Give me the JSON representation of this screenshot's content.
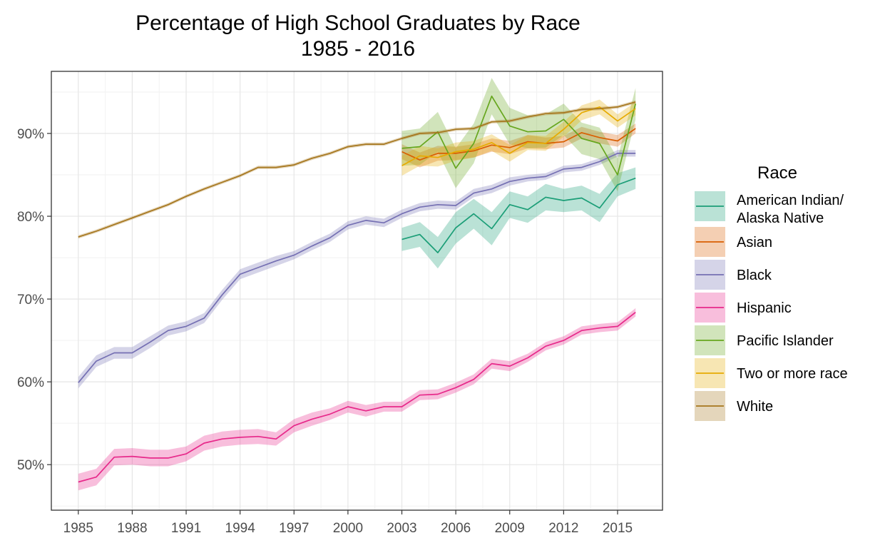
{
  "chart_data": {
    "type": "line",
    "title": "Percentage of High School Graduates by Race",
    "subtitle": "1985 - 2016",
    "xlabel": "",
    "ylabel": "",
    "x_ticks": [
      1985,
      1988,
      1991,
      1994,
      1997,
      2000,
      2003,
      2006,
      2009,
      2012,
      2015
    ],
    "y_ticks": [
      50,
      60,
      70,
      80,
      90
    ],
    "y_tick_labels": [
      "50%",
      "60%",
      "70%",
      "80%",
      "90%"
    ],
    "xlim": [
      1983.5,
      2017.5
    ],
    "ylim": [
      44.5,
      97.5
    ],
    "grid": true,
    "legend": {
      "title": "Race",
      "position": "right"
    },
    "series": [
      {
        "name": "American Indian/ Alaska Native",
        "label_lines": [
          "American Indian/",
          "Alaska Native"
        ],
        "color": "#1b9e77",
        "fill": "#b3e2d4",
        "x": [
          2003,
          2004,
          2005,
          2006,
          2007,
          2008,
          2009,
          2010,
          2011,
          2012,
          2013,
          2014,
          2015,
          2016
        ],
        "y": [
          77.2,
          77.8,
          75.6,
          78.6,
          80.3,
          78.5,
          81.4,
          80.8,
          82.3,
          81.9,
          82.2,
          81.0,
          83.8,
          84.6
        ],
        "band": [
          1.4,
          1.5,
          1.9,
          1.9,
          1.8,
          2.0,
          1.6,
          1.6,
          1.6,
          1.4,
          1.5,
          1.7,
          1.4,
          1.3
        ]
      },
      {
        "name": "Asian",
        "label_lines": [
          "Asian"
        ],
        "color": "#d95f02",
        "fill": "#f3cdb0",
        "x": [
          2003,
          2004,
          2005,
          2006,
          2007,
          2008,
          2009,
          2010,
          2011,
          2012,
          2013,
          2014,
          2015,
          2016
        ],
        "y": [
          87.8,
          86.8,
          87.6,
          87.6,
          87.9,
          88.6,
          88.3,
          89.0,
          88.8,
          89.0,
          90.1,
          89.5,
          89.1,
          90.6
        ],
        "band": [
          0.9,
          0.9,
          0.9,
          0.8,
          0.8,
          0.8,
          0.8,
          0.8,
          0.7,
          0.7,
          0.7,
          0.7,
          0.7,
          0.6
        ]
      },
      {
        "name": "Black",
        "label_lines": [
          "Black"
        ],
        "color": "#7570b3",
        "fill": "#d4d2e8",
        "x": [
          1985,
          1986,
          1987,
          1988,
          1989,
          1990,
          1991,
          1992,
          1993,
          1994,
          1995,
          1996,
          1997,
          1998,
          1999,
          2000,
          2001,
          2002,
          2003,
          2004,
          2005,
          2006,
          2007,
          2008,
          2009,
          2010,
          2011,
          2012,
          2013,
          2014,
          2015,
          2016
        ],
        "y": [
          59.9,
          62.5,
          63.5,
          63.5,
          64.8,
          66.2,
          66.7,
          67.7,
          70.5,
          73.0,
          73.8,
          74.6,
          75.3,
          76.4,
          77.4,
          78.9,
          79.5,
          79.2,
          80.3,
          81.1,
          81.4,
          81.3,
          82.8,
          83.3,
          84.2,
          84.6,
          84.8,
          85.7,
          85.9,
          86.6,
          87.6,
          87.6
        ],
        "band": [
          0.7,
          0.7,
          0.7,
          0.7,
          0.7,
          0.6,
          0.6,
          0.6,
          0.6,
          0.6,
          0.6,
          0.6,
          0.5,
          0.5,
          0.5,
          0.5,
          0.5,
          0.5,
          0.5,
          0.5,
          0.5,
          0.5,
          0.5,
          0.5,
          0.5,
          0.4,
          0.4,
          0.4,
          0.4,
          0.4,
          0.4,
          0.4
        ]
      },
      {
        "name": "Hispanic",
        "label_lines": [
          "Hispanic"
        ],
        "color": "#e7298a",
        "fill": "#f6bcda",
        "x": [
          1985,
          1986,
          1987,
          1988,
          1989,
          1990,
          1991,
          1992,
          1993,
          1994,
          1995,
          1996,
          1997,
          1998,
          1999,
          2000,
          2001,
          2002,
          2003,
          2004,
          2005,
          2006,
          2007,
          2008,
          2009,
          2010,
          2011,
          2012,
          2013,
          2014,
          2015,
          2016
        ],
        "y": [
          47.9,
          48.5,
          50.9,
          51.0,
          50.8,
          50.8,
          51.3,
          52.6,
          53.1,
          53.3,
          53.4,
          53.1,
          54.7,
          55.5,
          56.1,
          57.0,
          56.5,
          57.0,
          57.0,
          58.4,
          58.5,
          59.3,
          60.3,
          62.2,
          61.9,
          62.9,
          64.3,
          65.0,
          66.2,
          66.5,
          66.7,
          68.4
        ],
        "band": [
          1.0,
          1.0,
          1.0,
          1.0,
          1.0,
          1.0,
          0.9,
          0.9,
          0.9,
          0.9,
          0.9,
          0.8,
          0.8,
          0.8,
          0.7,
          0.7,
          0.7,
          0.6,
          0.6,
          0.6,
          0.6,
          0.6,
          0.6,
          0.6,
          0.6,
          0.5,
          0.5,
          0.5,
          0.5,
          0.5,
          0.5,
          0.5
        ]
      },
      {
        "name": "Pacific Islander",
        "label_lines": [
          "Pacific Islander"
        ],
        "color": "#66a61e",
        "fill": "#d1e4bc",
        "x": [
          2003,
          2004,
          2005,
          2006,
          2007,
          2008,
          2009,
          2010,
          2011,
          2012,
          2013,
          2014,
          2015,
          2016
        ],
        "y": [
          88.2,
          88.4,
          90.2,
          85.8,
          88.8,
          94.5,
          90.9,
          90.2,
          90.3,
          91.7,
          89.4,
          88.8,
          85.0,
          93.6
        ],
        "band": [
          2.1,
          2.2,
          2.4,
          2.4,
          2.4,
          2.2,
          2.2,
          2.0,
          2.0,
          1.9,
          1.9,
          1.9,
          2.0,
          1.9
        ]
      },
      {
        "name": "Two or more race",
        "label_lines": [
          "Two or more race"
        ],
        "color": "#e6ab02",
        "fill": "#f8e4ab",
        "x": [
          2003,
          2004,
          2005,
          2006,
          2007,
          2008,
          2009,
          2010,
          2011,
          2012,
          2013,
          2014,
          2015,
          2016
        ],
        "y": [
          86.1,
          87.3,
          87.1,
          87.8,
          88.1,
          88.9,
          87.6,
          88.9,
          88.8,
          90.5,
          92.5,
          93.2,
          91.5,
          93.0
        ],
        "band": [
          1.2,
          1.2,
          1.1,
          1.1,
          1.0,
          1.0,
          1.0,
          0.9,
          0.9,
          0.9,
          0.9,
          0.9,
          0.8,
          0.8
        ]
      },
      {
        "name": "White",
        "label_lines": [
          "White"
        ],
        "color": "#a6761d",
        "fill": "#e4d6bb",
        "x": [
          1985,
          1986,
          1987,
          1988,
          1989,
          1990,
          1991,
          1992,
          1993,
          1994,
          1995,
          1996,
          1997,
          1998,
          1999,
          2000,
          2001,
          2002,
          2003,
          2004,
          2005,
          2006,
          2007,
          2008,
          2009,
          2010,
          2011,
          2012,
          2013,
          2014,
          2015,
          2016
        ],
        "y": [
          77.5,
          78.2,
          79.0,
          79.8,
          80.6,
          81.4,
          82.4,
          83.3,
          84.1,
          84.9,
          85.9,
          85.9,
          86.2,
          87.0,
          87.6,
          88.4,
          88.7,
          88.7,
          89.4,
          90.0,
          90.1,
          90.5,
          90.6,
          91.4,
          91.5,
          92.0,
          92.4,
          92.5,
          92.9,
          93.0,
          93.2,
          93.8
        ],
        "band": [
          0.2,
          0.2,
          0.2,
          0.2,
          0.2,
          0.2,
          0.2,
          0.2,
          0.2,
          0.2,
          0.2,
          0.2,
          0.2,
          0.2,
          0.2,
          0.2,
          0.2,
          0.2,
          0.2,
          0.2,
          0.2,
          0.2,
          0.2,
          0.2,
          0.2,
          0.2,
          0.2,
          0.2,
          0.2,
          0.2,
          0.2,
          0.2
        ]
      }
    ]
  }
}
